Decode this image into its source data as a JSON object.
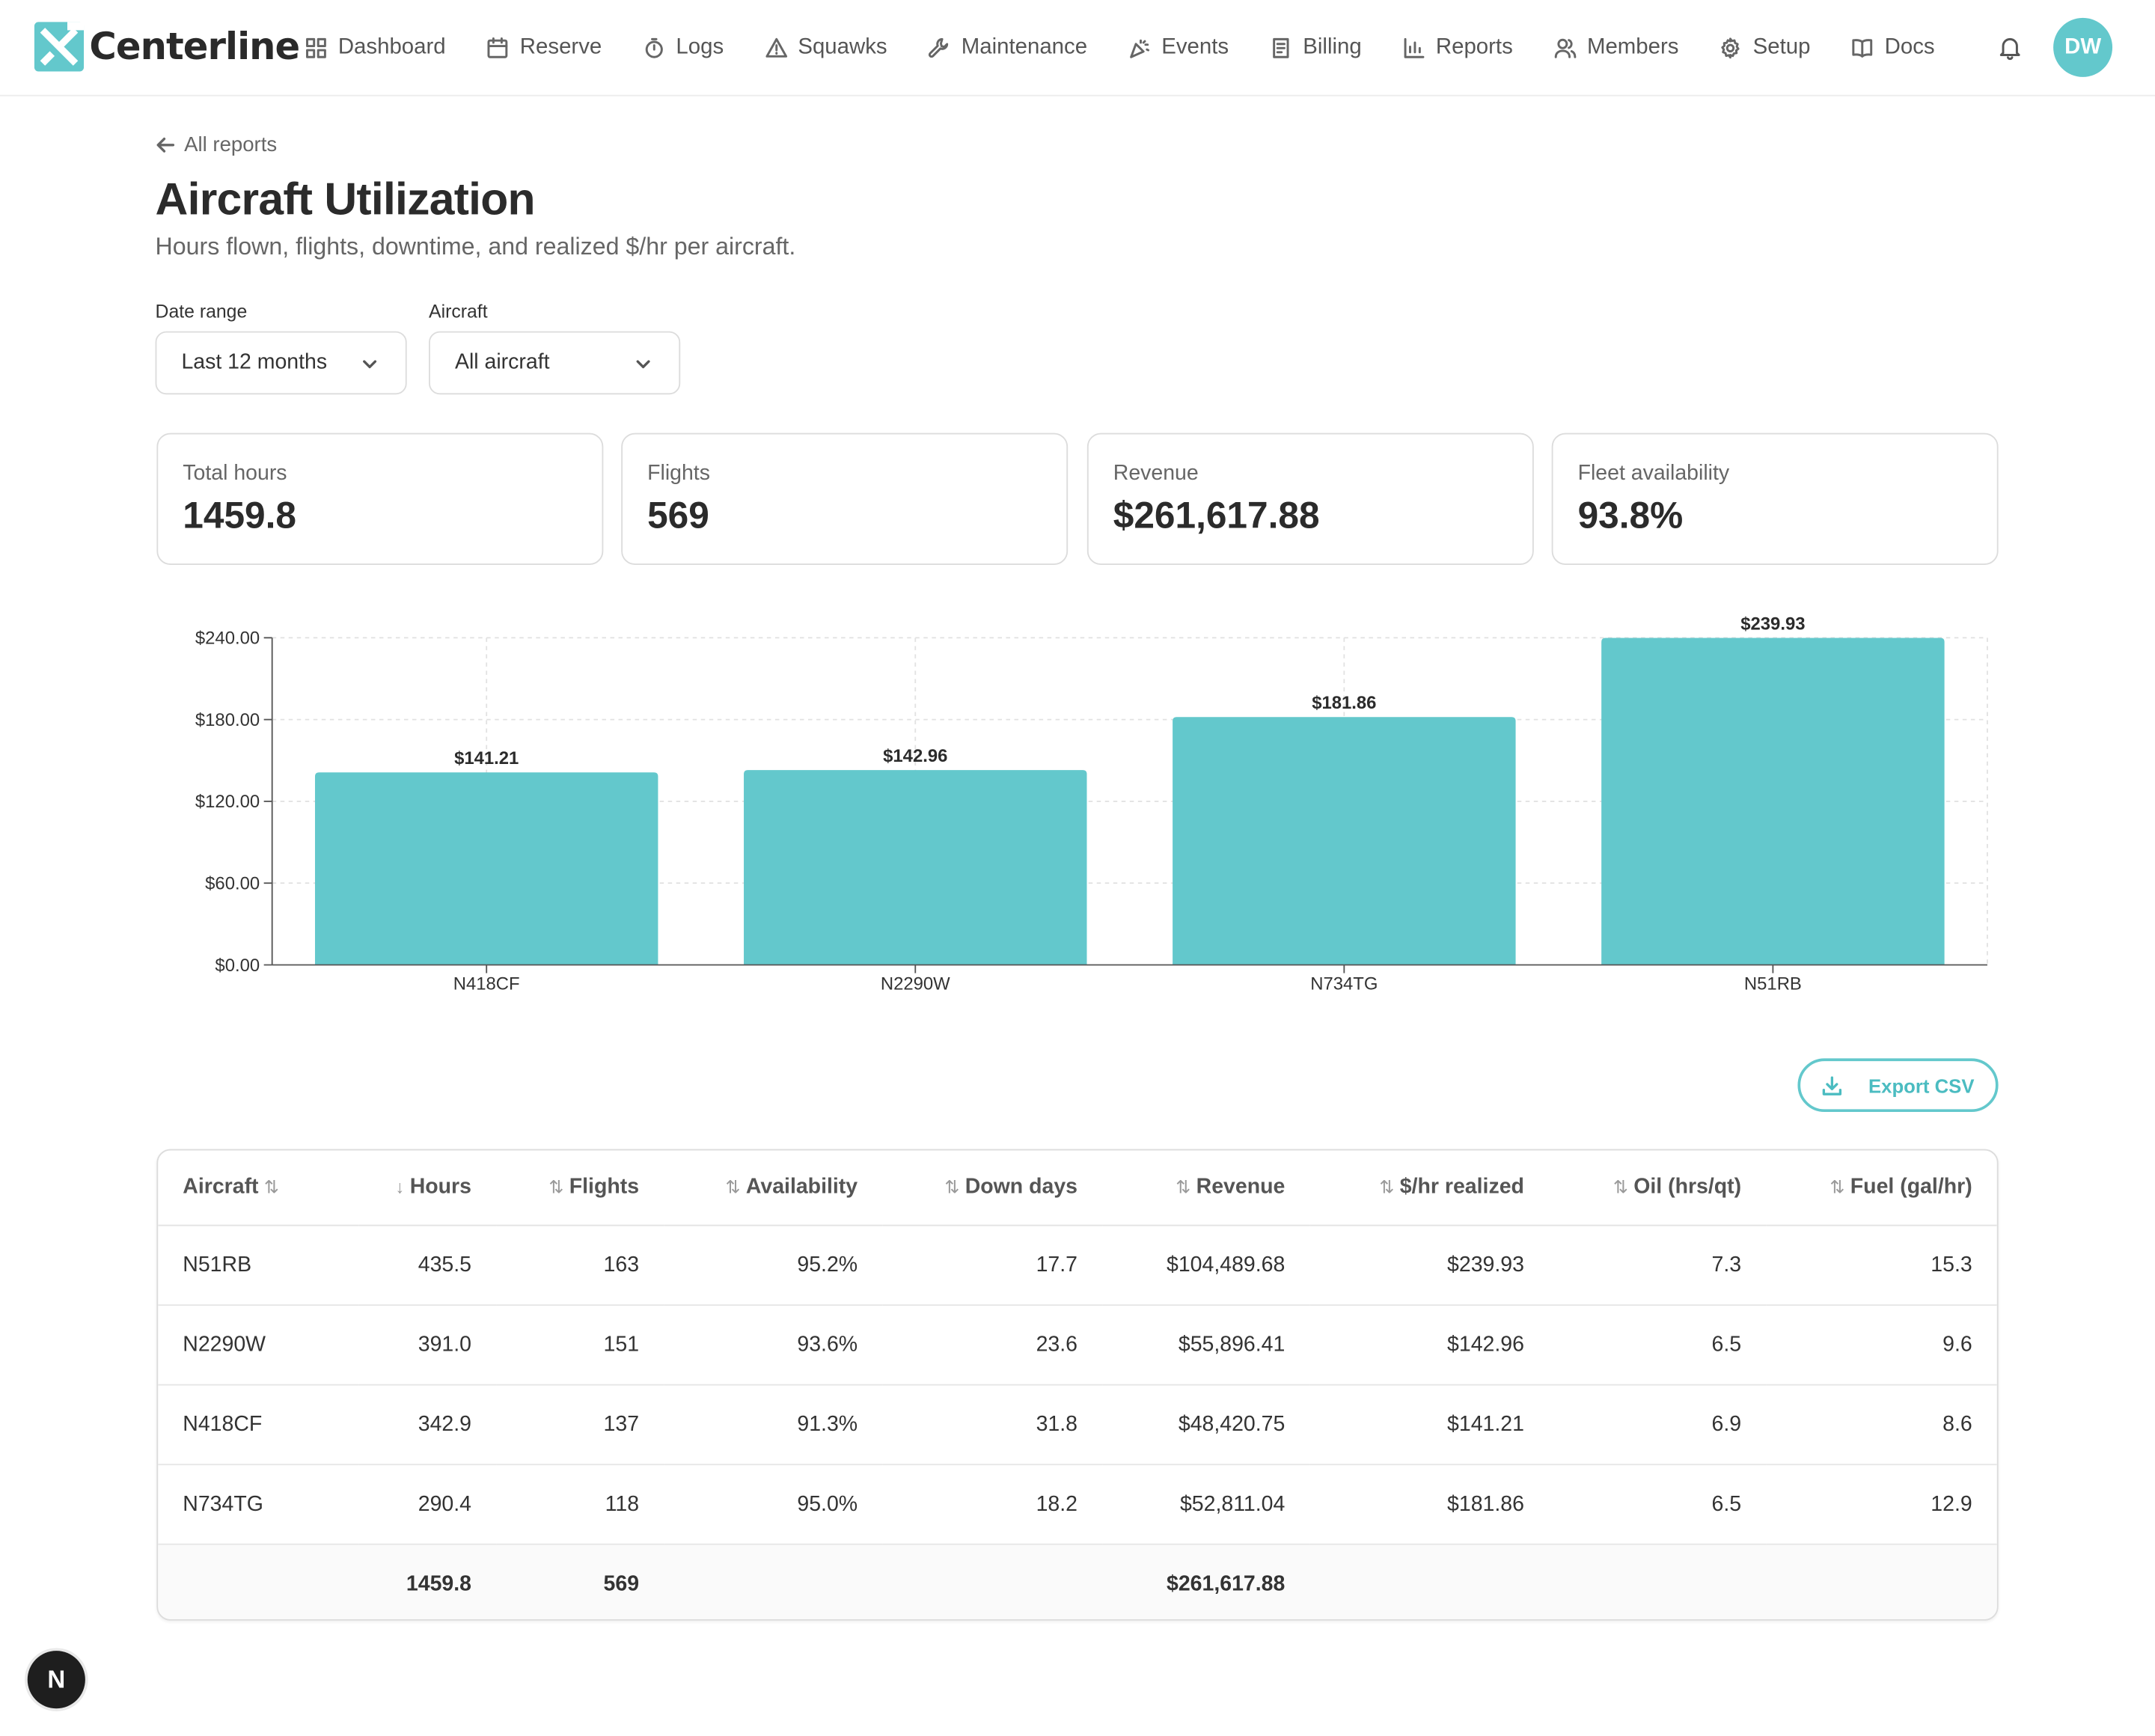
{
  "app": {
    "name": "Centerline",
    "avatar_initials": "DW",
    "badge_letter": "N"
  },
  "nav": {
    "items": [
      {
        "label": "Dashboard",
        "icon": "grid-icon"
      },
      {
        "label": "Reserve",
        "icon": "calendar-icon"
      },
      {
        "label": "Logs",
        "icon": "stopwatch-icon"
      },
      {
        "label": "Squawks",
        "icon": "warning-icon"
      },
      {
        "label": "Maintenance",
        "icon": "wrench-icon"
      },
      {
        "label": "Events",
        "icon": "party-icon"
      },
      {
        "label": "Billing",
        "icon": "receipt-icon"
      },
      {
        "label": "Reports",
        "icon": "bar-chart-icon"
      },
      {
        "label": "Members",
        "icon": "users-icon"
      },
      {
        "label": "Setup",
        "icon": "gear-icon"
      },
      {
        "label": "Docs",
        "icon": "book-icon"
      }
    ]
  },
  "page": {
    "back_label": "All reports",
    "title": "Aircraft Utilization",
    "subtitle": "Hours flown, flights, downtime, and realized $/hr per aircraft."
  },
  "filters": {
    "date_range": {
      "label": "Date range",
      "value": "Last 12 months"
    },
    "aircraft": {
      "label": "Aircraft",
      "value": "All aircraft"
    }
  },
  "stats": [
    {
      "label": "Total hours",
      "value": "1459.8"
    },
    {
      "label": "Flights",
      "value": "569"
    },
    {
      "label": "Revenue",
      "value": "$261,617.88"
    },
    {
      "label": "Fleet availability",
      "value": "93.8%"
    }
  ],
  "chart_data": {
    "type": "bar",
    "categories": [
      "N418CF",
      "N2290W",
      "N734TG",
      "N51RB"
    ],
    "values": [
      141.21,
      142.96,
      181.86,
      239.93
    ],
    "value_labels": [
      "$141.21",
      "$142.96",
      "$181.86",
      "$239.93"
    ],
    "yticks": [
      "$0.00",
      "$60.00",
      "$120.00",
      "$180.00",
      "$240.00"
    ],
    "ylim": [
      0,
      240
    ],
    "grid": true,
    "bar_color": "#63c8cc"
  },
  "export_label": "Export CSV",
  "table": {
    "columns": [
      {
        "label": "Aircraft",
        "sort": "⇅"
      },
      {
        "label": "Hours",
        "sort": "↓"
      },
      {
        "label": "Flights",
        "sort": "⇅"
      },
      {
        "label": "Availability",
        "sort": "⇅"
      },
      {
        "label": "Down days",
        "sort": "⇅"
      },
      {
        "label": "Revenue",
        "sort": "⇅"
      },
      {
        "label": "$/hr realized",
        "sort": "⇅"
      },
      {
        "label": "Oil (hrs/qt)",
        "sort": "⇅"
      },
      {
        "label": "Fuel (gal/hr)",
        "sort": "⇅"
      }
    ],
    "rows": [
      [
        "N51RB",
        "435.5",
        "163",
        "95.2%",
        "17.7",
        "$104,489.68",
        "$239.93",
        "7.3",
        "15.3"
      ],
      [
        "N2290W",
        "391.0",
        "151",
        "93.6%",
        "23.6",
        "$55,896.41",
        "$142.96",
        "6.5",
        "9.6"
      ],
      [
        "N418CF",
        "342.9",
        "137",
        "91.3%",
        "31.8",
        "$48,420.75",
        "$141.21",
        "6.9",
        "8.6"
      ],
      [
        "N734TG",
        "290.4",
        "118",
        "95.0%",
        "18.2",
        "$52,811.04",
        "$181.86",
        "6.5",
        "12.9"
      ]
    ],
    "totals": [
      "",
      "1459.8",
      "569",
      "",
      "",
      "$261,617.88",
      "",
      "",
      ""
    ]
  }
}
